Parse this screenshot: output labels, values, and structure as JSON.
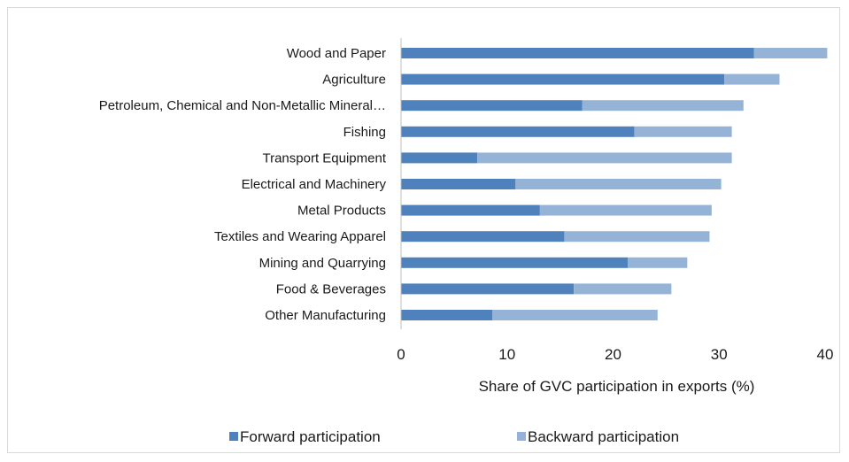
{
  "chart_data": {
    "type": "bar",
    "orientation": "horizontal",
    "stacked": true,
    "categories": [
      "Wood and Paper",
      "Agriculture",
      "Petroleum, Chemical and Non-Metallic Mineral…",
      "Fishing",
      "Transport Equipment",
      "Electrical and Machinery",
      "Metal Products",
      "Textiles and Wearing Apparel",
      "Mining and Quarrying",
      "Food & Beverages",
      "Other Manufacturing"
    ],
    "series": [
      {
        "name": "Forward participation",
        "color": "#4f81bd",
        "values": [
          33.3,
          30.5,
          17.1,
          22.0,
          7.2,
          10.8,
          13.1,
          15.4,
          21.4,
          16.3,
          8.6
        ]
      },
      {
        "name": "Backward participation",
        "color": "#95b3d7",
        "values": [
          6.9,
          5.2,
          15.2,
          9.2,
          24.0,
          19.4,
          16.2,
          13.7,
          5.6,
          9.2,
          15.6
        ]
      }
    ],
    "xlabel": "Share of GVC participation in exports (%)",
    "xlim": [
      0,
      40
    ],
    "xticks": [
      "0",
      "10",
      "20",
      "30",
      "40"
    ],
    "grid": false,
    "legend_position": "bottom"
  }
}
